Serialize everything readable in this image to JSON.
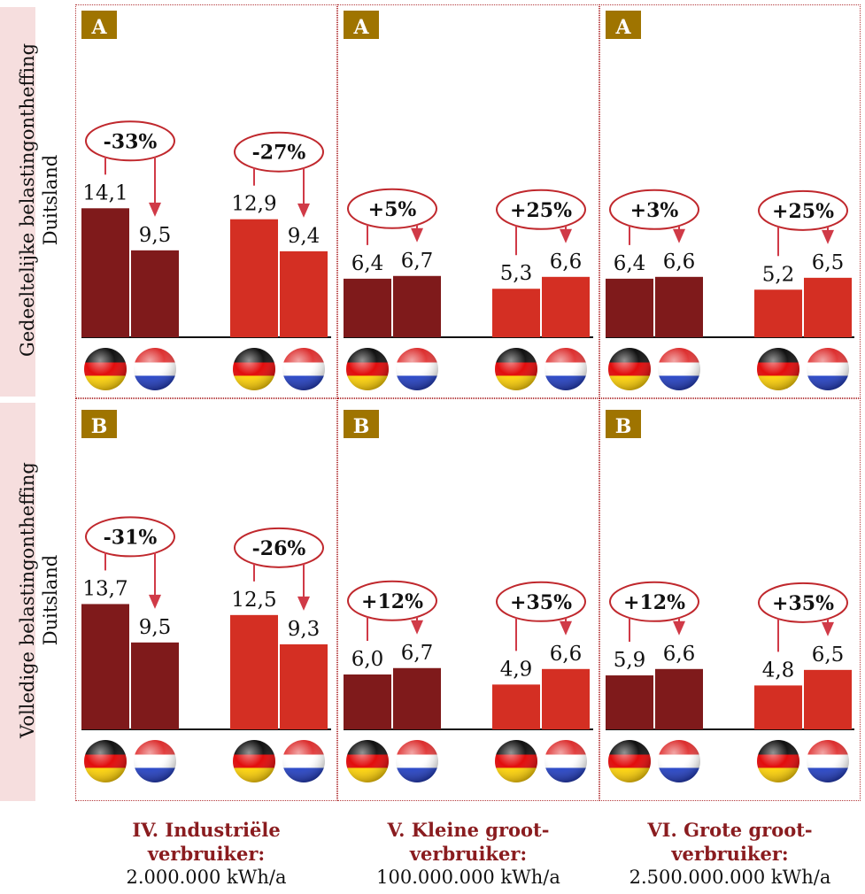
{
  "colors": {
    "dark_bar": "#7f1a1b",
    "light_bar": "#d42f23",
    "panel_border": "#b4393b",
    "badge_bg": "#9f7400",
    "badge_text": "#ffffff",
    "ellipse_stroke": "#c0282d",
    "arrow": "#d03a47",
    "footer_title": "#8a1c1f"
  },
  "rows": [
    {
      "label_line1": "Gedeeltelijke belastingontheffing",
      "label_line2": "Duitsland"
    },
    {
      "label_line1": "Volledige belastingontheffing",
      "label_line2": "Duitsland"
    }
  ],
  "columns": [
    {
      "title_line1": "IV. Industriële",
      "title_line2": "verbruiker:",
      "subtitle": "2.000.000 kWh/a"
    },
    {
      "title_line1": "V. Kleine groot-",
      "title_line2": "verbruiker:",
      "subtitle": "100.000.000 kWh/a"
    },
    {
      "title_line1": "VI. Grote groot-",
      "title_line2": "verbruiker:",
      "subtitle": "2.500.000.000 kWh/a"
    }
  ],
  "flag_icons": [
    "germany-flag-icon",
    "netherlands-flag-icon"
  ],
  "chart_data": [
    {
      "type": "bar",
      "badge": "A",
      "value_max": 15,
      "groups": [
        {
          "values": [
            14.1,
            9.5
          ],
          "labels": [
            "14,1",
            "9,5"
          ],
          "change": "-33%"
        },
        {
          "values": [
            12.9,
            9.4
          ],
          "labels": [
            "12,9",
            "9,4"
          ],
          "change": "-27%"
        }
      ]
    },
    {
      "type": "bar",
      "badge": "A",
      "value_max": 15,
      "groups": [
        {
          "values": [
            6.4,
            6.7
          ],
          "labels": [
            "6,4",
            "6,7"
          ],
          "change": "+5%"
        },
        {
          "values": [
            5.3,
            6.6
          ],
          "labels": [
            "5,3",
            "6,6"
          ],
          "change": "+25%"
        }
      ]
    },
    {
      "type": "bar",
      "badge": "A",
      "value_max": 15,
      "groups": [
        {
          "values": [
            6.4,
            6.6
          ],
          "labels": [
            "6,4",
            "6,6"
          ],
          "change": "+3%"
        },
        {
          "values": [
            5.2,
            6.5
          ],
          "labels": [
            "5,2",
            "6,5"
          ],
          "change": "+25%"
        }
      ]
    },
    {
      "type": "bar",
      "badge": "B",
      "value_max": 15,
      "groups": [
        {
          "values": [
            13.7,
            9.5
          ],
          "labels": [
            "13,7",
            "9,5"
          ],
          "change": "-31%"
        },
        {
          "values": [
            12.5,
            9.3
          ],
          "labels": [
            "12,5",
            "9,3"
          ],
          "change": "-26%"
        }
      ]
    },
    {
      "type": "bar",
      "badge": "B",
      "value_max": 15,
      "groups": [
        {
          "values": [
            6.0,
            6.7
          ],
          "labels": [
            "6,0",
            "6,7"
          ],
          "change": "+12%"
        },
        {
          "values": [
            4.9,
            6.6
          ],
          "labels": [
            "4,9",
            "6,6"
          ],
          "change": "+35%"
        }
      ]
    },
    {
      "type": "bar",
      "badge": "B",
      "value_max": 15,
      "groups": [
        {
          "values": [
            5.9,
            6.6
          ],
          "labels": [
            "5,9",
            "6,6"
          ],
          "change": "+12%"
        },
        {
          "values": [
            4.8,
            6.5
          ],
          "labels": [
            "4,8",
            "6,5"
          ],
          "change": "+35%"
        }
      ]
    }
  ]
}
